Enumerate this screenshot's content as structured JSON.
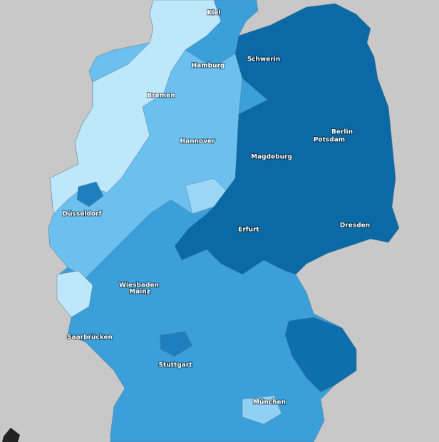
{
  "labels": [
    "Kiel",
    "Hamburg",
    "Schwerin",
    "Bremen",
    "Hannover",
    "Berlin",
    "Potsdam",
    "Magdeburg",
    "Düsseldorf",
    "Erfurt",
    "Dresden",
    "Wiesbaden",
    "Mainz",
    "Saarbrücken",
    "Stuttgart",
    "München"
  ]
}
